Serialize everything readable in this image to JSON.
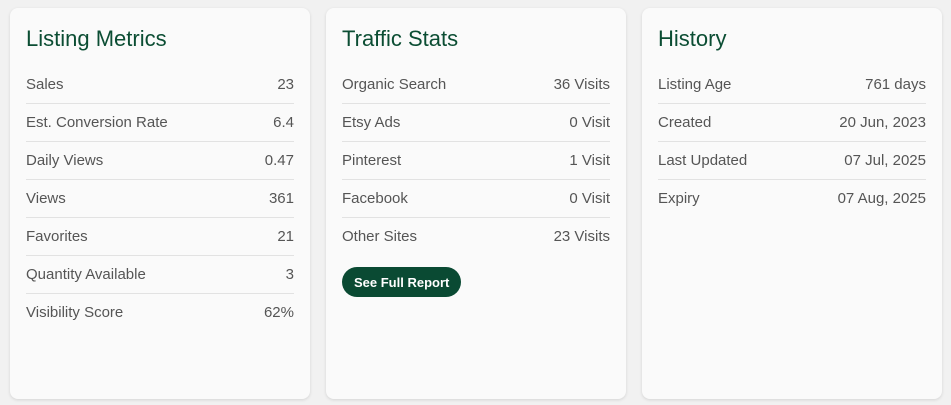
{
  "colors": {
    "accent": "#0a4a33",
    "title": "#0b4d33"
  },
  "listing_metrics": {
    "title": "Listing Metrics",
    "rows": [
      {
        "label": "Sales",
        "value": "23"
      },
      {
        "label": "Est. Conversion Rate",
        "value": "6.4"
      },
      {
        "label": "Daily Views",
        "value": "0.47"
      },
      {
        "label": "Views",
        "value": "361"
      },
      {
        "label": "Favorites",
        "value": "21"
      },
      {
        "label": "Quantity Available",
        "value": "3"
      },
      {
        "label": "Visibility Score",
        "value": "62%"
      }
    ]
  },
  "traffic_stats": {
    "title": "Traffic Stats",
    "rows": [
      {
        "label": "Organic Search",
        "value": "36 Visits"
      },
      {
        "label": "Etsy Ads",
        "value": "0 Visit"
      },
      {
        "label": "Pinterest",
        "value": "1 Visit"
      },
      {
        "label": "Facebook",
        "value": "0 Visit"
      },
      {
        "label": "Other Sites",
        "value": "23 Visits"
      }
    ],
    "button_label": "See Full Report"
  },
  "history": {
    "title": "History",
    "rows": [
      {
        "label": "Listing Age",
        "value": "761 days"
      },
      {
        "label": "Created",
        "value": "20 Jun, 2023"
      },
      {
        "label": "Last Updated",
        "value": "07 Jul, 2025"
      },
      {
        "label": "Expiry",
        "value": "07 Aug, 2025"
      }
    ]
  }
}
